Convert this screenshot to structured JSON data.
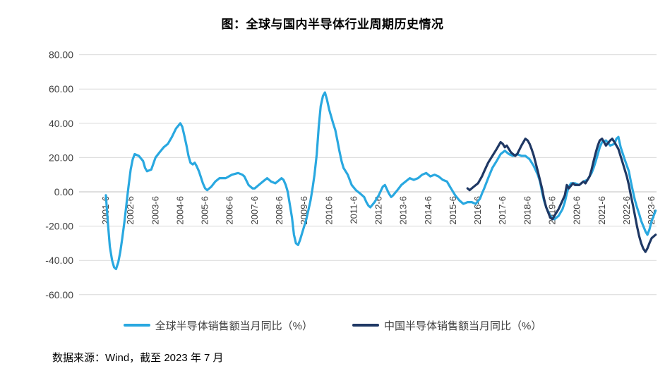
{
  "page": {
    "source": "数据来源：Wind，截至 2023 年 7 月"
  },
  "chart_data": {
    "type": "line",
    "title": "图：全球与国内半导体行业周期历史情况",
    "grid": true,
    "legend_position": "bottom",
    "y_axis": {
      "min": -60,
      "max": 80,
      "tick_step": 20,
      "ticks": [
        80,
        60,
        40,
        20,
        0,
        -20,
        -40,
        -60
      ],
      "tick_labels": [
        "80.00",
        "60.00",
        "40.00",
        "20.00",
        "0.00",
        "-20.00",
        "-40.00",
        "-60.00"
      ]
    },
    "x_axis": {
      "unit": "year-month",
      "tick_labels": [
        "2001-6",
        "2002-6",
        "2003-6",
        "2004-6",
        "2005-6",
        "2006-6",
        "2007-6",
        "2008-6",
        "2009-6",
        "2010-6",
        "2011-6",
        "2012-6",
        "2013-6",
        "2014-6",
        "2015-6",
        "2016-6",
        "2017-6",
        "2018-6",
        "2019-6",
        "2020-6",
        "2021-6",
        "2022-6",
        "2023-6"
      ]
    },
    "series": [
      {
        "name": "全球半导体销售额当月同比（%）",
        "color": "#29A8E0",
        "points": [
          [
            2001.42,
            -2
          ],
          [
            2001.5,
            -18
          ],
          [
            2001.58,
            -32
          ],
          [
            2001.67,
            -40
          ],
          [
            2001.75,
            -44
          ],
          [
            2001.83,
            -45
          ],
          [
            2001.92,
            -41
          ],
          [
            2002.0,
            -35
          ],
          [
            2002.08,
            -27
          ],
          [
            2002.17,
            -17
          ],
          [
            2002.25,
            -7
          ],
          [
            2002.33,
            3
          ],
          [
            2002.42,
            13
          ],
          [
            2002.5,
            19
          ],
          [
            2002.58,
            22
          ],
          [
            2002.75,
            21
          ],
          [
            2002.92,
            18
          ],
          [
            2003.0,
            14
          ],
          [
            2003.08,
            12
          ],
          [
            2003.25,
            13
          ],
          [
            2003.42,
            20
          ],
          [
            2003.58,
            23
          ],
          [
            2003.75,
            26
          ],
          [
            2003.92,
            28
          ],
          [
            2004.08,
            32
          ],
          [
            2004.25,
            37
          ],
          [
            2004.42,
            40
          ],
          [
            2004.5,
            38
          ],
          [
            2004.58,
            33
          ],
          [
            2004.67,
            27
          ],
          [
            2004.75,
            21
          ],
          [
            2004.83,
            17
          ],
          [
            2004.92,
            16
          ],
          [
            2005.0,
            17
          ],
          [
            2005.08,
            15
          ],
          [
            2005.17,
            12
          ],
          [
            2005.33,
            5
          ],
          [
            2005.42,
            2
          ],
          [
            2005.5,
            1
          ],
          [
            2005.67,
            3
          ],
          [
            2005.83,
            6
          ],
          [
            2006.0,
            8
          ],
          [
            2006.25,
            8
          ],
          [
            2006.5,
            10
          ],
          [
            2006.75,
            11
          ],
          [
            2006.92,
            10
          ],
          [
            2007.0,
            9
          ],
          [
            2007.17,
            4
          ],
          [
            2007.33,
            2
          ],
          [
            2007.42,
            2
          ],
          [
            2007.58,
            4
          ],
          [
            2007.75,
            6
          ],
          [
            2007.92,
            8
          ],
          [
            2008.08,
            6
          ],
          [
            2008.25,
            5
          ],
          [
            2008.42,
            7
          ],
          [
            2008.5,
            8
          ],
          [
            2008.58,
            7
          ],
          [
            2008.67,
            4
          ],
          [
            2008.75,
            0
          ],
          [
            2008.83,
            -7
          ],
          [
            2008.92,
            -15
          ],
          [
            2009.0,
            -25
          ],
          [
            2009.08,
            -30
          ],
          [
            2009.17,
            -31
          ],
          [
            2009.25,
            -28
          ],
          [
            2009.33,
            -24
          ],
          [
            2009.5,
            -16
          ],
          [
            2009.58,
            -11
          ],
          [
            2009.67,
            -5
          ],
          [
            2009.75,
            2
          ],
          [
            2009.83,
            10
          ],
          [
            2009.92,
            22
          ],
          [
            2010.0,
            38
          ],
          [
            2010.08,
            50
          ],
          [
            2010.17,
            56
          ],
          [
            2010.25,
            58
          ],
          [
            2010.33,
            54
          ],
          [
            2010.42,
            48
          ],
          [
            2010.5,
            44
          ],
          [
            2010.58,
            40
          ],
          [
            2010.67,
            36
          ],
          [
            2010.75,
            30
          ],
          [
            2010.83,
            24
          ],
          [
            2010.92,
            18
          ],
          [
            2011.0,
            14
          ],
          [
            2011.17,
            10
          ],
          [
            2011.33,
            4
          ],
          [
            2011.5,
            1
          ],
          [
            2011.67,
            -1
          ],
          [
            2011.83,
            -3
          ],
          [
            2011.92,
            -6
          ],
          [
            2012.0,
            -8
          ],
          [
            2012.08,
            -9
          ],
          [
            2012.25,
            -6
          ],
          [
            2012.42,
            -2
          ],
          [
            2012.58,
            3
          ],
          [
            2012.67,
            4
          ],
          [
            2012.83,
            -1
          ],
          [
            2012.92,
            -3
          ],
          [
            2013.0,
            -2
          ],
          [
            2013.17,
            1
          ],
          [
            2013.33,
            4
          ],
          [
            2013.5,
            6
          ],
          [
            2013.67,
            8
          ],
          [
            2013.83,
            7
          ],
          [
            2014.0,
            8
          ],
          [
            2014.17,
            10
          ],
          [
            2014.33,
            11
          ],
          [
            2014.5,
            9
          ],
          [
            2014.67,
            10
          ],
          [
            2014.83,
            9
          ],
          [
            2015.0,
            7
          ],
          [
            2015.17,
            6
          ],
          [
            2015.33,
            2
          ],
          [
            2015.5,
            -2
          ],
          [
            2015.67,
            -5
          ],
          [
            2015.83,
            -7
          ],
          [
            2016.0,
            -6
          ],
          [
            2016.17,
            -6
          ],
          [
            2016.33,
            -7
          ],
          [
            2016.5,
            -4
          ],
          [
            2016.58,
            -1
          ],
          [
            2016.67,
            2
          ],
          [
            2016.83,
            8
          ],
          [
            2017.0,
            14
          ],
          [
            2017.17,
            18
          ],
          [
            2017.33,
            22
          ],
          [
            2017.5,
            24
          ],
          [
            2017.67,
            22
          ],
          [
            2017.83,
            21
          ],
          [
            2018.0,
            22
          ],
          [
            2018.17,
            21
          ],
          [
            2018.33,
            21
          ],
          [
            2018.5,
            19
          ],
          [
            2018.67,
            15
          ],
          [
            2018.83,
            10
          ],
          [
            2018.92,
            6
          ],
          [
            2019.0,
            0
          ],
          [
            2019.08,
            -5
          ],
          [
            2019.17,
            -9
          ],
          [
            2019.33,
            -14
          ],
          [
            2019.5,
            -16
          ],
          [
            2019.67,
            -14
          ],
          [
            2019.83,
            -10
          ],
          [
            2019.92,
            -6
          ],
          [
            2020.0,
            -1
          ],
          [
            2020.08,
            3
          ],
          [
            2020.17,
            5
          ],
          [
            2020.33,
            5
          ],
          [
            2020.5,
            4
          ],
          [
            2020.67,
            6
          ],
          [
            2020.83,
            7
          ],
          [
            2021.0,
            11
          ],
          [
            2021.08,
            14
          ],
          [
            2021.17,
            18
          ],
          [
            2021.25,
            22
          ],
          [
            2021.33,
            26
          ],
          [
            2021.42,
            29
          ],
          [
            2021.58,
            30
          ],
          [
            2021.75,
            27
          ],
          [
            2021.92,
            28
          ],
          [
            2022.0,
            31
          ],
          [
            2022.08,
            32
          ],
          [
            2022.17,
            26
          ],
          [
            2022.33,
            19
          ],
          [
            2022.5,
            12
          ],
          [
            2022.58,
            6
          ],
          [
            2022.67,
            0
          ],
          [
            2022.75,
            -5
          ],
          [
            2022.83,
            -9
          ],
          [
            2022.92,
            -13
          ],
          [
            2023.0,
            -17
          ],
          [
            2023.17,
            -23
          ],
          [
            2023.25,
            -25
          ],
          [
            2023.33,
            -22
          ],
          [
            2023.42,
            -17
          ],
          [
            2023.58,
            -11
          ]
        ]
      },
      {
        "name": "中国半导体销售额当月同比（%）",
        "color": "#1F3864",
        "points": [
          [
            2016.0,
            2
          ],
          [
            2016.08,
            1
          ],
          [
            2016.25,
            3
          ],
          [
            2016.42,
            5
          ],
          [
            2016.5,
            7
          ],
          [
            2016.58,
            9
          ],
          [
            2016.67,
            12
          ],
          [
            2016.83,
            17
          ],
          [
            2017.0,
            21
          ],
          [
            2017.17,
            25
          ],
          [
            2017.33,
            29
          ],
          [
            2017.42,
            28
          ],
          [
            2017.5,
            26
          ],
          [
            2017.58,
            27
          ],
          [
            2017.75,
            23
          ],
          [
            2017.92,
            21
          ],
          [
            2018.0,
            22
          ],
          [
            2018.17,
            27
          ],
          [
            2018.33,
            31
          ],
          [
            2018.42,
            30
          ],
          [
            2018.5,
            28
          ],
          [
            2018.58,
            25
          ],
          [
            2018.67,
            21
          ],
          [
            2018.83,
            12
          ],
          [
            2019.0,
            2
          ],
          [
            2019.08,
            -4
          ],
          [
            2019.17,
            -9
          ],
          [
            2019.33,
            -15
          ],
          [
            2019.42,
            -16
          ],
          [
            2019.5,
            -14
          ],
          [
            2019.67,
            -10
          ],
          [
            2019.83,
            -5
          ],
          [
            2019.92,
            -2
          ],
          [
            2020.0,
            4
          ],
          [
            2020.08,
            2
          ],
          [
            2020.25,
            5
          ],
          [
            2020.33,
            4
          ],
          [
            2020.5,
            4
          ],
          [
            2020.67,
            6
          ],
          [
            2020.75,
            5
          ],
          [
            2020.92,
            9
          ],
          [
            2021.0,
            13
          ],
          [
            2021.08,
            18
          ],
          [
            2021.17,
            23
          ],
          [
            2021.25,
            27
          ],
          [
            2021.33,
            30
          ],
          [
            2021.42,
            31
          ],
          [
            2021.5,
            29
          ],
          [
            2021.58,
            27
          ],
          [
            2021.75,
            30
          ],
          [
            2021.83,
            31
          ],
          [
            2021.92,
            29
          ],
          [
            2022.0,
            27
          ],
          [
            2022.08,
            25
          ],
          [
            2022.25,
            17
          ],
          [
            2022.42,
            9
          ],
          [
            2022.5,
            4
          ],
          [
            2022.58,
            -2
          ],
          [
            2022.67,
            -8
          ],
          [
            2022.75,
            -14
          ],
          [
            2022.83,
            -20
          ],
          [
            2022.92,
            -26
          ],
          [
            2023.0,
            -30
          ],
          [
            2023.08,
            -33
          ],
          [
            2023.17,
            -35
          ],
          [
            2023.25,
            -33
          ],
          [
            2023.33,
            -30
          ],
          [
            2023.42,
            -27
          ],
          [
            2023.58,
            -25
          ]
        ]
      }
    ],
    "style": {
      "grid_color": "#D9D9D9",
      "zero_axis_color": "#BFBFBF",
      "axis_label_color": "#404040"
    }
  }
}
